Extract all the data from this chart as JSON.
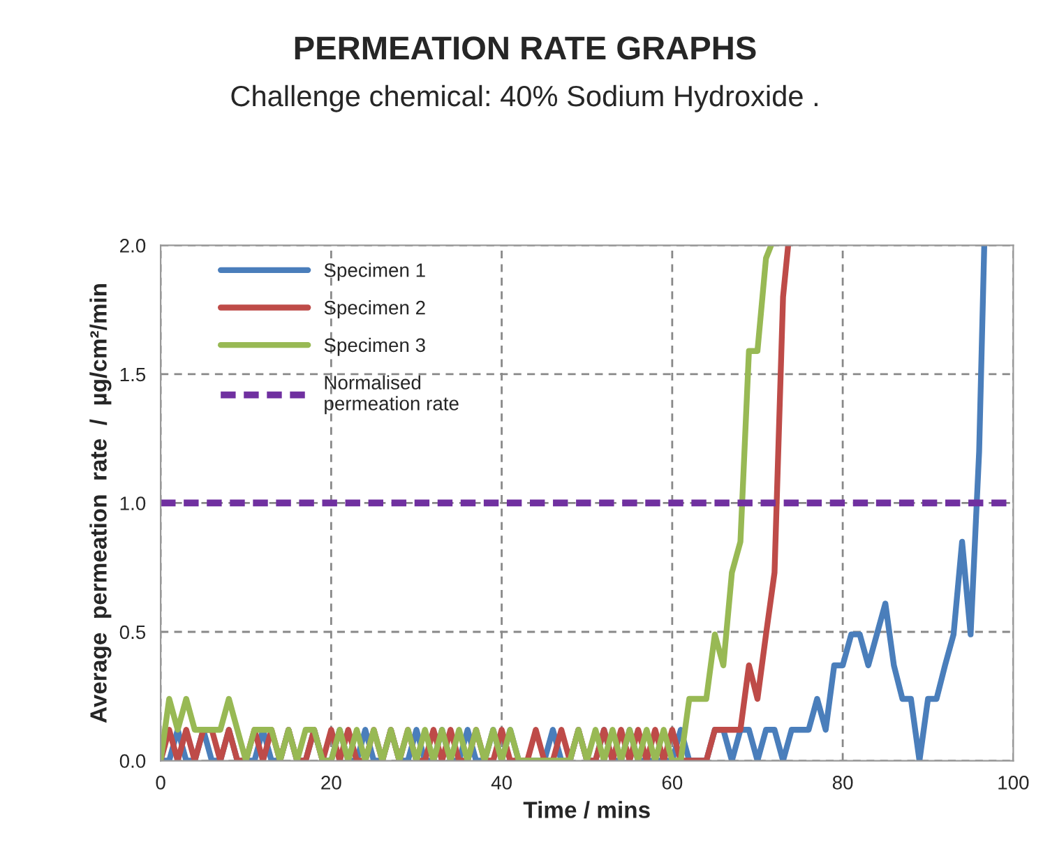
{
  "chart_data": {
    "type": "line",
    "title": "PERMEATION RATE GRAPHS",
    "subtitle": "Challenge chemical: 40% Sodium Hydroxide .",
    "xlabel": "Time / mins",
    "ylabel": "Average  permeation  rate  /  µg/cm²/min",
    "xlim": [
      0,
      100
    ],
    "xticks": [
      0,
      20,
      40,
      60,
      80,
      100
    ],
    "ylim": [
      0,
      2.0
    ],
    "yticks": [
      {
        "value": 0,
        "label": "0.0"
      },
      {
        "value": 0.5,
        "label": "0.5"
      },
      {
        "value": 1.0,
        "label": "1.0"
      },
      {
        "value": 1.5,
        "label": "1.5"
      },
      {
        "value": 2.0,
        "label": "2.0"
      }
    ],
    "grid": true,
    "legend": "top left",
    "line_style": "solid",
    "marker": "none",
    "series": [
      {
        "name": "Specimen 1",
        "color": "#4a7ebb",
        "x": [
          0,
          1,
          2,
          3,
          4,
          5,
          6,
          7,
          8,
          9,
          10,
          11,
          12,
          13,
          14,
          15,
          16,
          17,
          18,
          19,
          20,
          21,
          22,
          23,
          24,
          25,
          26,
          27,
          28,
          29,
          30,
          31,
          32,
          33,
          34,
          35,
          36,
          37,
          38,
          39,
          40,
          41,
          42,
          43,
          44,
          45,
          46,
          47,
          48,
          49,
          50,
          51,
          52,
          53,
          54,
          55,
          56,
          57,
          58,
          59,
          60,
          61,
          62,
          63,
          64,
          65,
          66,
          67,
          68,
          69,
          70,
          71,
          72,
          73,
          74,
          75,
          76,
          77,
          78,
          79,
          80,
          81,
          82,
          83,
          84,
          85,
          86,
          87,
          88,
          89,
          90,
          91,
          92,
          93,
          94,
          95,
          96,
          96.6
        ],
        "values": [
          0,
          0,
          0.12,
          0,
          0,
          0.12,
          0,
          0,
          0.12,
          0,
          0,
          0,
          0.12,
          0,
          0,
          0.12,
          0,
          0,
          0.12,
          0,
          0,
          0.12,
          0,
          0,
          0.12,
          0,
          0,
          0.12,
          0,
          0,
          0.12,
          0,
          0,
          0.12,
          0,
          0,
          0.12,
          0,
          0,
          0.12,
          0,
          0.12,
          0,
          0,
          null,
          0,
          0.12,
          0,
          0,
          0.12,
          0,
          0,
          0.12,
          0,
          0,
          0.12,
          0,
          0,
          null,
          0,
          0,
          0.12,
          0,
          0,
          0,
          0.12,
          0.12,
          0,
          0.12,
          0.12,
          0,
          0.12,
          0.12,
          0,
          0.12,
          0.12,
          0.12,
          0.24,
          0.12,
          0.37,
          0.37,
          0.49,
          0.49,
          0.37,
          0.49,
          0.61,
          0.37,
          0.24,
          0.24,
          0,
          0.24,
          0.24,
          0.37,
          0.49,
          0.85,
          0.49,
          1.2,
          2.0
        ]
      },
      {
        "name": "Specimen 2",
        "color": "#be4b48",
        "x": [
          0,
          1,
          2,
          3,
          4,
          5,
          6,
          7,
          8,
          9,
          10,
          11,
          12,
          13,
          14,
          15,
          16,
          17,
          18,
          19,
          20,
          21,
          22,
          23,
          24,
          25,
          26,
          27,
          28,
          29,
          30,
          31,
          32,
          33,
          34,
          35,
          36,
          37,
          38,
          39,
          40,
          41,
          42,
          43,
          44,
          45,
          46,
          47,
          48,
          49,
          50,
          51,
          52,
          53,
          54,
          55,
          56,
          57,
          58,
          59,
          60,
          61,
          62,
          63,
          64,
          65,
          66,
          67,
          68,
          69,
          70,
          71,
          72,
          73,
          73.6
        ],
        "values": [
          0,
          0.12,
          0,
          0.12,
          0,
          0.12,
          0.12,
          0,
          0.12,
          0,
          0,
          0.12,
          0,
          0.12,
          0,
          0.12,
          0,
          0,
          0.12,
          0,
          0.12,
          0,
          0.12,
          0,
          0,
          0.12,
          0,
          0.12,
          0,
          0.12,
          0,
          0,
          0.12,
          0,
          0.12,
          0,
          0,
          0.12,
          0,
          0,
          0.12,
          0,
          0,
          0,
          0.12,
          0,
          0,
          0.12,
          0,
          0.12,
          0,
          0,
          0.12,
          0,
          0.12,
          0,
          0.12,
          0,
          0.12,
          0,
          0.12,
          0,
          0,
          0,
          0,
          0.12,
          0.12,
          0.12,
          0.12,
          0.37,
          0.24,
          0.49,
          0.73,
          1.8,
          2.0
        ]
      },
      {
        "name": "Specimen 3",
        "color": "#98b954",
        "x": [
          0,
          1,
          2,
          3,
          4,
          5,
          6,
          7,
          8,
          9,
          10,
          11,
          12,
          13,
          14,
          15,
          16,
          17,
          18,
          19,
          20,
          21,
          22,
          23,
          24,
          25,
          26,
          27,
          28,
          29,
          30,
          31,
          32,
          33,
          34,
          35,
          36,
          37,
          38,
          39,
          40,
          41,
          42,
          43,
          44,
          45,
          46,
          47,
          48,
          49,
          50,
          51,
          52,
          53,
          54,
          55,
          56,
          57,
          58,
          59,
          60,
          61,
          62,
          63,
          64,
          65,
          66,
          67,
          68,
          69,
          70,
          71,
          71.6
        ],
        "values": [
          0,
          0.24,
          0.12,
          0.24,
          0.12,
          0.12,
          0.12,
          0.12,
          0.24,
          0.12,
          0,
          0.12,
          0.12,
          0.12,
          0,
          0.12,
          0,
          0.12,
          0.12,
          0,
          0,
          0.12,
          0,
          0.12,
          0,
          0.12,
          0,
          0.12,
          0,
          0.12,
          0,
          0.12,
          0,
          0.12,
          0,
          0.12,
          0,
          0.12,
          0,
          0.12,
          0,
          0.12,
          0,
          0,
          0,
          0,
          0,
          0,
          0,
          0.12,
          0,
          0.12,
          0,
          0.12,
          0,
          0.12,
          0,
          0.12,
          0,
          0.12,
          0,
          0,
          0.24,
          0.24,
          0.24,
          0.49,
          0.37,
          0.73,
          0.85,
          1.59,
          1.59,
          1.95,
          2.0
        ]
      }
    ],
    "ref_lines": [
      {
        "axis": "y",
        "value": 1.0,
        "label": "Normalised\npermeation rate",
        "color": "#7030a0",
        "line_style": "dashed"
      }
    ]
  }
}
